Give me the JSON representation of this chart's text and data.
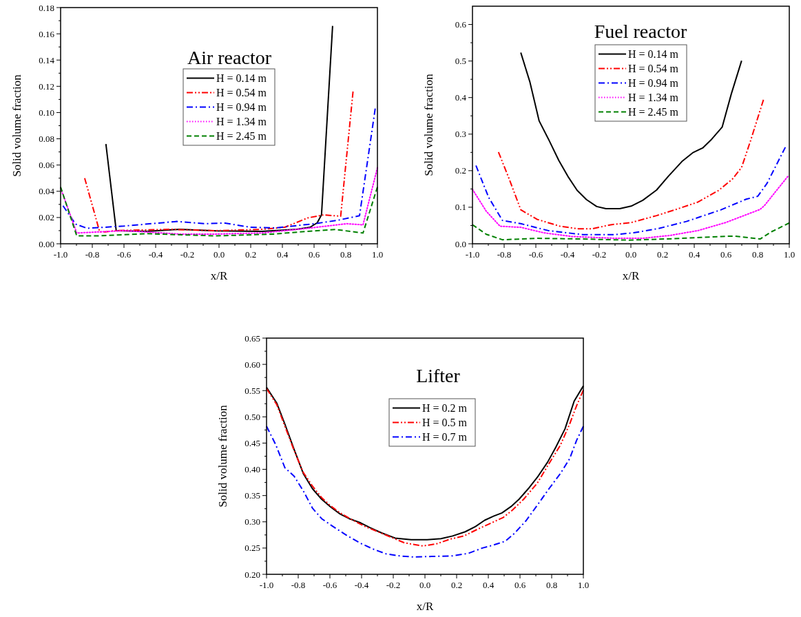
{
  "chart_data": [
    {
      "type": "line",
      "title": "Air reactor",
      "xlabel": "x/R",
      "ylabel": "Solid volume fraction",
      "xlim": [
        -1,
        1
      ],
      "ylim": [
        0,
        0.18
      ],
      "xticks": [
        {
          "value": -1,
          "label": "-1.0"
        },
        {
          "value": -0.9,
          "label": null
        },
        {
          "value": -0.8,
          "label": "-0.8"
        },
        {
          "value": -0.7,
          "label": null
        },
        {
          "value": -0.6,
          "label": "-0.6"
        },
        {
          "value": -0.5,
          "label": null
        },
        {
          "value": -0.4,
          "label": "-0.4"
        },
        {
          "value": -0.3,
          "label": null
        },
        {
          "value": -0.2,
          "label": "-0.2"
        },
        {
          "value": -0.1,
          "label": null
        },
        {
          "value": 0,
          "label": "0.0"
        },
        {
          "value": 0.1,
          "label": null
        },
        {
          "value": 0.2,
          "label": "0.2"
        },
        {
          "value": 0.3,
          "label": null
        },
        {
          "value": 0.4,
          "label": "0.4"
        },
        {
          "value": 0.5,
          "label": null
        },
        {
          "value": 0.6,
          "label": "0.6"
        },
        {
          "value": 0.7,
          "label": null
        },
        {
          "value": 0.8,
          "label": "0.8"
        },
        {
          "value": 0.9,
          "label": null
        },
        {
          "value": 1,
          "label": "1.0"
        }
      ],
      "yticks": [
        {
          "value": 0,
          "label": "0.00"
        },
        {
          "value": 0.01,
          "label": null
        },
        0.02,
        {
          "value": 0.03,
          "label": null
        },
        0.04,
        {
          "value": 0.05,
          "label": null
        },
        0.06,
        {
          "value": 0.07,
          "label": null
        },
        0.08,
        {
          "value": 0.09,
          "label": null
        },
        {
          "value": 0.1,
          "label": "0.10"
        },
        {
          "value": 0.11,
          "label": null
        },
        0.12,
        {
          "value": 0.13,
          "label": null
        },
        0.14,
        {
          "value": 0.15,
          "label": null
        },
        0.16,
        {
          "value": 0.17,
          "label": null
        },
        0.18
      ],
      "grid": false,
      "legend": "top",
      "marker": "none",
      "series": [
        {
          "name": "H = 0.14 m",
          "color": "#000000",
          "line_style": "solid",
          "x": [
            -0.714,
            -0.649,
            -0.456,
            -0.25,
            -0.02,
            0.27,
            0.49,
            0.575,
            0.62,
            0.647,
            0.717
          ],
          "values": [
            0.076,
            0.01,
            0.0095,
            0.011,
            0.0098,
            0.0095,
            0.011,
            0.0126,
            0.016,
            0.022,
            0.166
          ]
        },
        {
          "name": "H = 0.54 m",
          "color": "#ff0000",
          "line_style": "dashdotdot",
          "x": [
            -0.848,
            -0.753,
            -0.717,
            -0.659,
            -0.31,
            -0.02,
            0.27,
            0.415,
            0.56,
            0.66,
            0.768,
            0.846
          ],
          "values": [
            0.05,
            0.009,
            0.009,
            0.01,
            0.011,
            0.01,
            0.011,
            0.0126,
            0.0197,
            0.022,
            0.021,
            0.116
          ]
        },
        {
          "name": "H = 0.94 m",
          "color": "#0000ff",
          "line_style": "dashdot",
          "x": [
            -0.985,
            -0.906,
            -0.833,
            -0.6,
            -0.267,
            -0.093,
            0.038,
            0.197,
            0.357,
            0.604,
            0.749,
            0.887,
            0.986
          ],
          "values": [
            0.029,
            0.015,
            0.0118,
            0.0135,
            0.017,
            0.0153,
            0.0158,
            0.0126,
            0.0121,
            0.0153,
            0.0179,
            0.0214,
            0.103
          ]
        },
        {
          "name": "H = 1.34 m",
          "color": "#ff00ff",
          "line_style": "dotted",
          "x": [
            -1,
            -0.898,
            -0.6,
            -0.25,
            -0.02,
            0.27,
            0.56,
            0.807,
            0.909,
            1
          ],
          "values": [
            0.0425,
            0.0082,
            0.01,
            0.0074,
            0.0074,
            0.0082,
            0.0118,
            0.0153,
            0.0144,
            0.058
          ]
        },
        {
          "name": "H = 2.45 m",
          "color": "#008000",
          "line_style": "dashed",
          "x": [
            -1,
            -0.898,
            -0.76,
            -0.456,
            -0.02,
            0.343,
            0.56,
            0.734,
            0.909,
            1
          ],
          "values": [
            0.0433,
            0.006,
            0.006,
            0.0077,
            0.006,
            0.0074,
            0.0095,
            0.0109,
            0.0082,
            0.0433
          ]
        }
      ]
    },
    {
      "type": "line",
      "title": "Fuel reactor",
      "xlabel": "x/R",
      "ylabel": "Solid volume fraction",
      "xlim": [
        -1,
        1
      ],
      "ylim": [
        0,
        0.65
      ],
      "xticks": [
        {
          "value": -1,
          "label": "-1.0"
        },
        {
          "value": -0.9,
          "label": null
        },
        {
          "value": -0.8,
          "label": "-0.8"
        },
        {
          "value": -0.7,
          "label": null
        },
        {
          "value": -0.6,
          "label": "-0.6"
        },
        {
          "value": -0.5,
          "label": null
        },
        {
          "value": -0.4,
          "label": "-0.4"
        },
        {
          "value": -0.3,
          "label": null
        },
        {
          "value": -0.2,
          "label": "-0.2"
        },
        {
          "value": -0.1,
          "label": null
        },
        {
          "value": 0,
          "label": "0.0"
        },
        {
          "value": 0.1,
          "label": null
        },
        {
          "value": 0.2,
          "label": "0.2"
        },
        {
          "value": 0.3,
          "label": null
        },
        {
          "value": 0.4,
          "label": "0.4"
        },
        {
          "value": 0.5,
          "label": null
        },
        {
          "value": 0.6,
          "label": "0.6"
        },
        {
          "value": 0.7,
          "label": null
        },
        {
          "value": 0.8,
          "label": "0.8"
        },
        {
          "value": 0.9,
          "label": null
        },
        {
          "value": 1,
          "label": "1.0"
        }
      ],
      "yticks": [
        {
          "value": 0,
          "label": "0.0"
        },
        {
          "value": 0.05,
          "label": null
        },
        0.1,
        {
          "value": 0.15,
          "label": null
        },
        0.2,
        {
          "value": 0.25,
          "label": null
        },
        0.3,
        {
          "value": 0.35,
          "label": null
        },
        0.4,
        {
          "value": 0.45,
          "label": null
        },
        0.5,
        {
          "value": 0.55,
          "label": null
        },
        0.6
      ],
      "grid": false,
      "legend": "top",
      "marker": "none",
      "series": [
        {
          "name": "H = 0.14 m",
          "color": "#000000",
          "line_style": "solid",
          "x": [
            -0.695,
            -0.637,
            -0.579,
            -0.521,
            -0.455,
            -0.397,
            -0.339,
            -0.281,
            -0.216,
            -0.158,
            -0.07,
            0.002,
            0.075,
            0.162,
            0.235,
            0.322,
            0.394,
            0.453,
            0.51,
            0.576,
            0.634,
            0.699
          ],
          "values": [
            0.523,
            0.442,
            0.336,
            0.287,
            0.228,
            0.184,
            0.146,
            0.121,
            0.102,
            0.096,
            0.096,
            0.103,
            0.119,
            0.147,
            0.184,
            0.225,
            0.25,
            0.262,
            0.286,
            0.319,
            0.41,
            0.501
          ]
        },
        {
          "name": "H = 0.54 m",
          "color": "#ff0000",
          "line_style": "dashdotdot",
          "x": [
            -0.836,
            -0.768,
            -0.695,
            -0.593,
            -0.448,
            -0.332,
            -0.245,
            -0.128,
            0.002,
            0.162,
            0.278,
            0.423,
            0.554,
            0.641,
            0.699,
            0.757,
            0.837
          ],
          "values": [
            0.251,
            0.177,
            0.093,
            0.067,
            0.048,
            0.041,
            0.041,
            0.052,
            0.058,
            0.077,
            0.093,
            0.114,
            0.146,
            0.177,
            0.209,
            0.284,
            0.394
          ]
        },
        {
          "name": "H = 0.94 m",
          "color": "#0000ff",
          "line_style": "dashdot",
          "x": [
            -0.978,
            -0.898,
            -0.811,
            -0.695,
            -0.521,
            -0.303,
            -0.1,
            0.017,
            0.176,
            0.35,
            0.569,
            0.728,
            0.801,
            0.859,
            0.975
          ],
          "values": [
            0.214,
            0.127,
            0.064,
            0.055,
            0.036,
            0.025,
            0.025,
            0.03,
            0.042,
            0.061,
            0.093,
            0.122,
            0.13,
            0.165,
            0.264
          ]
        },
        {
          "name": "H = 1.34 m",
          "color": "#ff00ff",
          "line_style": "dotted",
          "x": [
            -1,
            -0.913,
            -0.826,
            -0.695,
            -0.55,
            -0.375,
            -0.1,
            0.075,
            0.249,
            0.423,
            0.598,
            0.816,
            0.844,
            0.99
          ],
          "values": [
            0.149,
            0.089,
            0.048,
            0.045,
            0.03,
            0.02,
            0.015,
            0.015,
            0.023,
            0.036,
            0.058,
            0.094,
            0.105,
            0.184
          ]
        },
        {
          "name": "H = 2.45 m",
          "color": "#008000",
          "line_style": "dashed",
          "x": [
            -1,
            -0.913,
            -0.811,
            -0.593,
            -0.303,
            -0.012,
            0.278,
            0.569,
            0.656,
            0.816,
            0.888,
            1
          ],
          "values": [
            0.052,
            0.026,
            0.011,
            0.015,
            0.013,
            0.01,
            0.014,
            0.02,
            0.021,
            0.013,
            0.033,
            0.057
          ]
        }
      ]
    },
    {
      "type": "line",
      "title": "Lifter",
      "xlabel": "x/R",
      "ylabel": "Solid volume fraction",
      "xlim": [
        -1,
        1
      ],
      "ylim": [
        0.2,
        0.65
      ],
      "xticks": [
        {
          "value": -1,
          "label": "-1.0"
        },
        {
          "value": -0.9,
          "label": null
        },
        {
          "value": -0.8,
          "label": "-0.8"
        },
        {
          "value": -0.7,
          "label": null
        },
        {
          "value": -0.6,
          "label": "-0.6"
        },
        {
          "value": -0.5,
          "label": null
        },
        {
          "value": -0.4,
          "label": "-0.4"
        },
        {
          "value": -0.3,
          "label": null
        },
        {
          "value": -0.2,
          "label": "-0.2"
        },
        {
          "value": -0.1,
          "label": null
        },
        {
          "value": 0,
          "label": "0.0"
        },
        {
          "value": 0.1,
          "label": null
        },
        {
          "value": 0.2,
          "label": "0.2"
        },
        {
          "value": 0.3,
          "label": null
        },
        {
          "value": 0.4,
          "label": "0.4"
        },
        {
          "value": 0.5,
          "label": null
        },
        {
          "value": 0.6,
          "label": "0.6"
        },
        {
          "value": 0.7,
          "label": null
        },
        {
          "value": 0.8,
          "label": "0.8"
        },
        {
          "value": 0.9,
          "label": null
        },
        {
          "value": 1,
          "label": "1.0"
        }
      ],
      "yticks": [
        {
          "value": 0.2,
          "label": "0.20"
        },
        {
          "value": 0.225,
          "label": null
        },
        0.25,
        {
          "value": 0.275,
          "label": null
        },
        {
          "value": 0.3,
          "label": "0.30"
        },
        {
          "value": 0.325,
          "label": null
        },
        0.35,
        {
          "value": 0.375,
          "label": null
        },
        {
          "value": 0.4,
          "label": "0.40"
        },
        {
          "value": 0.425,
          "label": null
        },
        0.45,
        {
          "value": 0.475,
          "label": null
        },
        {
          "value": 0.5,
          "label": "0.50"
        },
        {
          "value": 0.525,
          "label": null
        },
        0.55,
        {
          "value": 0.575,
          "label": null
        },
        {
          "value": 0.6,
          "label": "0.60"
        },
        {
          "value": 0.625,
          "label": null
        },
        0.65
      ],
      "grid": false,
      "legend": "top",
      "marker": "none",
      "series": [
        {
          "name": "H = 0.2 m",
          "color": "#000000",
          "line_style": "solid",
          "x": [
            -1,
            -0.935,
            -0.884,
            -0.826,
            -0.768,
            -0.71,
            -0.652,
            -0.594,
            -0.536,
            -0.478,
            -0.406,
            -0.348,
            -0.275,
            -0.188,
            -0.087,
            0.014,
            0.101,
            0.174,
            0.254,
            0.319,
            0.377,
            0.435,
            0.486,
            0.543,
            0.594,
            0.652,
            0.71,
            0.775,
            0.826,
            0.884,
            0.942,
            1
          ],
          "values": [
            0.556,
            0.526,
            0.486,
            0.438,
            0.392,
            0.363,
            0.343,
            0.328,
            0.315,
            0.306,
            0.298,
            0.289,
            0.279,
            0.269,
            0.266,
            0.266,
            0.268,
            0.273,
            0.281,
            0.291,
            0.303,
            0.311,
            0.317,
            0.329,
            0.343,
            0.363,
            0.385,
            0.414,
            0.442,
            0.477,
            0.53,
            0.559
          ]
        },
        {
          "name": "H = 0.5 m",
          "color": "#ff0000",
          "line_style": "dashdotdot",
          "x": [
            -1,
            -0.935,
            -0.884,
            -0.826,
            -0.768,
            -0.71,
            -0.652,
            -0.594,
            -0.536,
            -0.449,
            -0.377,
            -0.304,
            -0.217,
            -0.13,
            -0.014,
            0.072,
            0.159,
            0.246,
            0.333,
            0.42,
            0.493,
            0.551,
            0.623,
            0.71,
            0.783,
            0.855,
            0.913,
            0.957,
            1
          ],
          "values": [
            0.554,
            0.523,
            0.482,
            0.436,
            0.394,
            0.368,
            0.346,
            0.33,
            0.317,
            0.302,
            0.291,
            0.282,
            0.271,
            0.26,
            0.254,
            0.258,
            0.267,
            0.273,
            0.286,
            0.298,
            0.308,
            0.322,
            0.343,
            0.374,
            0.411,
            0.446,
            0.486,
            0.521,
            0.551
          ]
        },
        {
          "name": "H = 0.7 m",
          "color": "#0000ff",
          "line_style": "dashdot",
          "x": [
            -1,
            -0.942,
            -0.884,
            -0.826,
            -0.768,
            -0.71,
            -0.652,
            -0.58,
            -0.493,
            -0.406,
            -0.319,
            -0.246,
            -0.159,
            -0.072,
            0.043,
            0.174,
            0.275,
            0.362,
            0.435,
            0.507,
            0.565,
            0.638,
            0.71,
            0.783,
            0.855,
            0.913,
            0.957,
            1
          ],
          "values": [
            0.482,
            0.447,
            0.403,
            0.387,
            0.359,
            0.326,
            0.306,
            0.291,
            0.274,
            0.259,
            0.247,
            0.239,
            0.235,
            0.233,
            0.234,
            0.235,
            0.24,
            0.25,
            0.256,
            0.263,
            0.278,
            0.302,
            0.332,
            0.363,
            0.392,
            0.42,
            0.455,
            0.482
          ]
        }
      ]
    }
  ]
}
